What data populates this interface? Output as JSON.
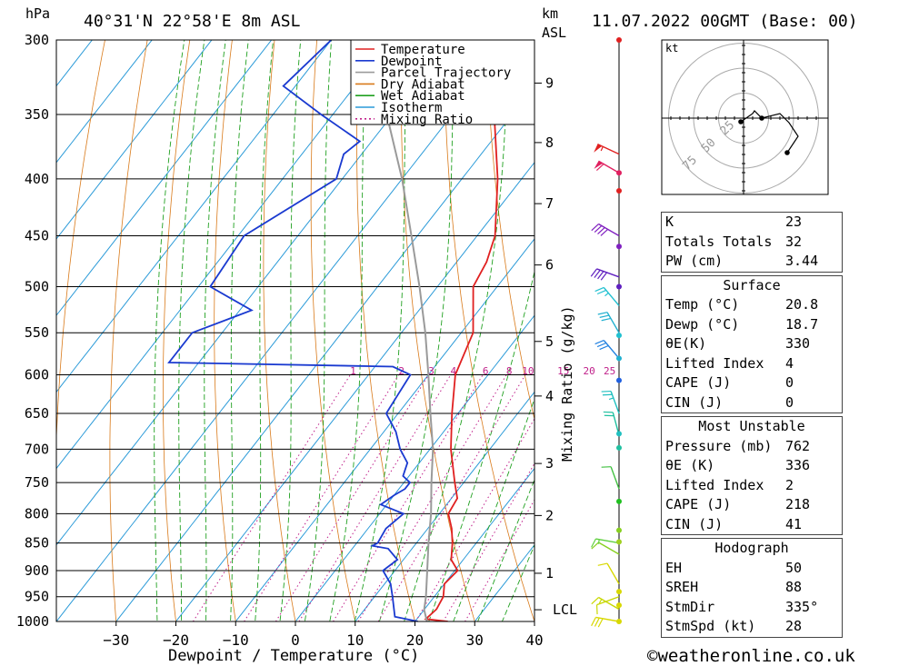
{
  "header": {
    "pressure_unit": "hPa",
    "location": "40°31'N 22°58'E 8m ASL",
    "height_unit_line1": "km",
    "height_unit_line2": "ASL",
    "datetime": "11.07.2022 00GMT (Base: 00)"
  },
  "legend": [
    {
      "label": "Temperature",
      "color": "#e02020",
      "dash": ""
    },
    {
      "label": "Dewpoint",
      "color": "#1a3ad0",
      "dash": ""
    },
    {
      "label": "Parcel Trajectory",
      "color": "#9a9a9a",
      "dash": ""
    },
    {
      "label": "Dry Adiabat",
      "color": "#d97a1a",
      "dash": ""
    },
    {
      "label": "Wet Adiabat",
      "color": "#20a020",
      "dash": ""
    },
    {
      "label": "Isotherm",
      "color": "#2a9ad8",
      "dash": ""
    },
    {
      "label": "Mixing Ratio",
      "color": "#c0208a",
      "dash": "2,3"
    }
  ],
  "chart_data": {
    "type": "line",
    "xlabel": "Dewpoint / Temperature (°C)",
    "ylabel": "hPa",
    "mixing_ratio_axis_label": "Mixing Ratio (g/kg)",
    "xlim": [
      -40,
      40
    ],
    "plim": [
      1000,
      300
    ],
    "skew_per_decade": 10,
    "x_ticks": [
      -30,
      -20,
      -10,
      0,
      10,
      20,
      30,
      40
    ],
    "pressure_ticks": [
      300,
      350,
      400,
      450,
      500,
      550,
      600,
      650,
      700,
      750,
      800,
      850,
      900,
      950,
      1000
    ],
    "km_ticks": [
      {
        "label": "9",
        "p": 328
      },
      {
        "label": "8",
        "p": 371
      },
      {
        "label": "7",
        "p": 421
      },
      {
        "label": "6",
        "p": 478
      },
      {
        "label": "5",
        "p": 560
      },
      {
        "label": "4",
        "p": 627
      },
      {
        "label": "3",
        "p": 721
      },
      {
        "label": "2",
        "p": 803
      },
      {
        "label": "1",
        "p": 905
      },
      {
        "label": "LCL",
        "p": 976
      }
    ],
    "mixing_ratio_labels": [
      {
        "label": "1",
        "w": 1
      },
      {
        "label": "2",
        "w": 2
      },
      {
        "label": "3",
        "w": 3
      },
      {
        "label": "4",
        "w": 4
      },
      {
        "label": "6",
        "w": 6
      },
      {
        "label": "8",
        "w": 8
      },
      {
        "label": "10",
        "w": 10
      },
      {
        "label": "15",
        "w": 15
      },
      {
        "label": "20",
        "w": 20
      },
      {
        "label": "25",
        "w": 25
      }
    ],
    "series": [
      {
        "name": "Temperature",
        "color": "#e02020",
        "points": [
          [
            1000,
            25.5
          ],
          [
            995,
            21.5
          ],
          [
            975,
            22
          ],
          [
            950,
            21.5
          ],
          [
            925,
            20
          ],
          [
            900,
            20.5
          ],
          [
            880,
            18
          ],
          [
            850,
            16
          ],
          [
            825,
            14
          ],
          [
            800,
            11.5
          ],
          [
            775,
            11
          ],
          [
            750,
            8.5
          ],
          [
            700,
            3.5
          ],
          [
            650,
            -1
          ],
          [
            600,
            -5.5
          ],
          [
            550,
            -8
          ],
          [
            500,
            -14
          ],
          [
            475,
            -15
          ],
          [
            450,
            -17
          ],
          [
            400,
            -24
          ],
          [
            350,
            -33
          ],
          [
            320,
            -38
          ],
          [
            300,
            -43
          ]
        ]
      },
      {
        "name": "Dewpoint",
        "color": "#1a3ad0",
        "points": [
          [
            1000,
            20.5
          ],
          [
            990,
            16
          ],
          [
            950,
            13
          ],
          [
            925,
            11
          ],
          [
            900,
            8
          ],
          [
            880,
            9
          ],
          [
            860,
            6
          ],
          [
            855,
            3
          ],
          [
            850,
            3.5
          ],
          [
            825,
            3
          ],
          [
            800,
            4
          ],
          [
            785,
            -1
          ],
          [
            770,
            0
          ],
          [
            760,
            1
          ],
          [
            750,
            1
          ],
          [
            740,
            -1
          ],
          [
            720,
            -2
          ],
          [
            700,
            -5
          ],
          [
            675,
            -8
          ],
          [
            650,
            -12
          ],
          [
            625,
            -12.5
          ],
          [
            600,
            -13
          ],
          [
            590,
            -17
          ],
          [
            585,
            -55
          ],
          [
            550,
            -55
          ],
          [
            525,
            -48
          ],
          [
            500,
            -58
          ],
          [
            450,
            -59
          ],
          [
            400,
            -51
          ],
          [
            380,
            -53
          ],
          [
            370,
            -52
          ],
          [
            350,
            -62
          ],
          [
            330,
            -72
          ],
          [
            300,
            -70
          ]
        ]
      },
      {
        "name": "Parcel Trajectory",
        "color": "#9a9a9a",
        "points": [
          [
            1000,
            22
          ],
          [
            976,
            20
          ],
          [
            950,
            18.6
          ],
          [
            900,
            15.4
          ],
          [
            850,
            12
          ],
          [
            800,
            8.6
          ],
          [
            750,
            4.6
          ],
          [
            700,
            0.5
          ],
          [
            650,
            -4.6
          ],
          [
            600,
            -10
          ],
          [
            550,
            -16
          ],
          [
            500,
            -23
          ],
          [
            450,
            -31
          ],
          [
            400,
            -40
          ],
          [
            350,
            -51
          ],
          [
            300,
            -64
          ]
        ]
      }
    ]
  },
  "wind": {
    "barbs": [
      {
        "p": 1000,
        "color": "#d8d800",
        "speed": 30,
        "dir": 280
      },
      {
        "p": 975,
        "color": "#c8d800",
        "speed": 15,
        "dir": 300
      },
      {
        "p": 950,
        "color": "#c8d800",
        "speed": 10,
        "dir": 250
      },
      {
        "p": 925,
        "color": "#d8d800",
        "speed": 10,
        "dir": 330
      },
      {
        "p": 870,
        "color": "#88d020",
        "speed": 10,
        "dir": 300
      },
      {
        "p": 850,
        "color": "#60d040",
        "speed": 15,
        "dir": 280
      },
      {
        "p": 760,
        "color": "#40c040",
        "speed": 10,
        "dir": 340
      },
      {
        "p": 680,
        "color": "#20c0a0",
        "speed": 20,
        "dir": 345
      },
      {
        "p": 650,
        "color": "#20c0c0",
        "speed": 25,
        "dir": 340
      },
      {
        "p": 580,
        "color": "#2080e0",
        "speed": 30,
        "dir": 320
      },
      {
        "p": 550,
        "color": "#20b0d0",
        "speed": 30,
        "dir": 330
      },
      {
        "p": 520,
        "color": "#20c0d0",
        "speed": 25,
        "dir": 320
      },
      {
        "p": 490,
        "color": "#6020c0",
        "speed": 40,
        "dir": 290
      },
      {
        "p": 450,
        "color": "#8020c0",
        "speed": 40,
        "dir": 300
      },
      {
        "p": 395,
        "color": "#e02060",
        "speed": 60,
        "dir": 300
      },
      {
        "p": 380,
        "color": "#e02020",
        "speed": 55,
        "dir": 295
      }
    ],
    "dots": [
      {
        "p": 300,
        "color": "#e02020"
      },
      {
        "p": 395,
        "color": "#e02060"
      },
      {
        "p": 410,
        "color": "#e02020"
      },
      {
        "p": 460,
        "color": "#8020c0"
      },
      {
        "p": 500,
        "color": "#6020c0"
      },
      {
        "p": 553,
        "color": "#20c0d0"
      },
      {
        "p": 580,
        "color": "#20b0d0"
      },
      {
        "p": 607,
        "color": "#2060e0"
      },
      {
        "p": 678,
        "color": "#20c0c0"
      },
      {
        "p": 698,
        "color": "#20c0a0"
      },
      {
        "p": 780,
        "color": "#20c020"
      },
      {
        "p": 828,
        "color": "#88d020"
      },
      {
        "p": 848,
        "color": "#a0d020"
      },
      {
        "p": 940,
        "color": "#d8d800"
      },
      {
        "p": 967,
        "color": "#d8d800"
      },
      {
        "p": 1000,
        "color": "#d8d800"
      }
    ]
  },
  "hodograph": {
    "unit": "kt",
    "ring_labels": [
      "25",
      "50",
      "75"
    ],
    "points": [
      [
        -3,
        -4
      ],
      [
        10,
        5
      ],
      [
        12,
        8
      ],
      [
        20,
        0
      ],
      [
        40,
        5
      ],
      [
        50,
        -5
      ],
      [
        60,
        -20
      ],
      [
        48,
        -38
      ]
    ]
  },
  "indices": {
    "top": [
      {
        "label": "K",
        "value": "23"
      },
      {
        "label": "Totals Totals",
        "value": "32"
      },
      {
        "label": "PW (cm)",
        "value": "3.44"
      }
    ],
    "surface": {
      "title": "Surface",
      "rows": [
        {
          "label": "Temp (°C)",
          "value": "20.8"
        },
        {
          "label": "Dewp (°C)",
          "value": "18.7"
        },
        {
          "label": "θE(K)",
          "value": "330"
        },
        {
          "label": "Lifted Index",
          "value": "4"
        },
        {
          "label": "CAPE (J)",
          "value": "0"
        },
        {
          "label": "CIN (J)",
          "value": "0"
        }
      ]
    },
    "most_unstable": {
      "title": "Most Unstable",
      "rows": [
        {
          "label": "Pressure (mb)",
          "value": "762"
        },
        {
          "label": "θE (K)",
          "value": "336"
        },
        {
          "label": "Lifted Index",
          "value": "2"
        },
        {
          "label": "CAPE (J)",
          "value": "218"
        },
        {
          "label": "CIN (J)",
          "value": "41"
        }
      ]
    },
    "hodograph_box": {
      "title": "Hodograph",
      "rows": [
        {
          "label": "EH",
          "value": "50"
        },
        {
          "label": "SREH",
          "value": "88"
        },
        {
          "label": "StmDir",
          "value": "335°"
        },
        {
          "label": "StmSpd (kt)",
          "value": "28"
        }
      ]
    }
  },
  "footer": {
    "copyright": "©weatheronline.co.uk"
  }
}
